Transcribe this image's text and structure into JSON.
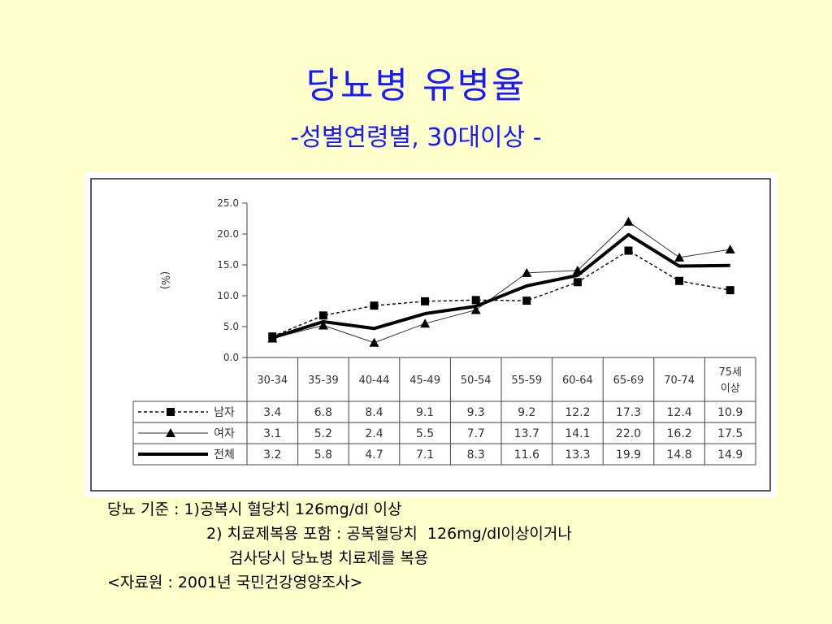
{
  "slide": {
    "title": "당뇨병 유병율",
    "subtitle": "-성별연령별, 30대이상 -"
  },
  "chart_data": {
    "type": "line",
    "ylabel": "(%)",
    "ylim": [
      0,
      25
    ],
    "yticks": [
      "25.0",
      "20.0",
      "15.0",
      "10.0",
      "5.0",
      "0.0"
    ],
    "categories": [
      "30-34",
      "35-39",
      "40-44",
      "45-49",
      "50-54",
      "55-59",
      "60-64",
      "65-69",
      "70-74",
      "75세 이상"
    ],
    "series": [
      {
        "name": "남자",
        "style": "dashed-square",
        "values": [
          3.4,
          6.8,
          8.4,
          9.1,
          9.3,
          9.2,
          12.2,
          17.3,
          12.4,
          10.9
        ],
        "labels": [
          "3.4",
          "6.8",
          "8.4",
          "9.1",
          "9.3",
          "9.2",
          "12.2",
          "17.3",
          "12.4",
          "10.9"
        ]
      },
      {
        "name": "여자",
        "style": "thin-triangle",
        "values": [
          3.1,
          5.2,
          2.4,
          5.5,
          7.7,
          13.7,
          14.1,
          22.0,
          16.2,
          17.5
        ],
        "labels": [
          "3.1",
          "5.2",
          "2.4",
          "5.5",
          "7.7",
          "13.7",
          "14.1",
          "22.0",
          "16.2",
          "17.5"
        ]
      },
      {
        "name": "전체",
        "style": "thick",
        "values": [
          3.2,
          5.8,
          4.7,
          7.1,
          8.3,
          11.6,
          13.3,
          19.9,
          14.8,
          14.9
        ],
        "labels": [
          "3.2",
          "5.8",
          "4.7",
          "7.1",
          "8.3",
          "11.6",
          "13.3",
          "19.9",
          "14.8",
          "14.9"
        ]
      }
    ],
    "grid": false,
    "legend": "left-table"
  },
  "notes": {
    "line1": "당뇨 기준 : 1)공복시 혈당치 126mg/dl 이상",
    "line2": "2) 치료제복용 포함 : 공복혈당치  126mg/dl이상이거나",
    "line3": "검사당시 당뇨병 치료제를 복용",
    "source": "<자료원 : 2001년 국민건강영양조사>"
  }
}
